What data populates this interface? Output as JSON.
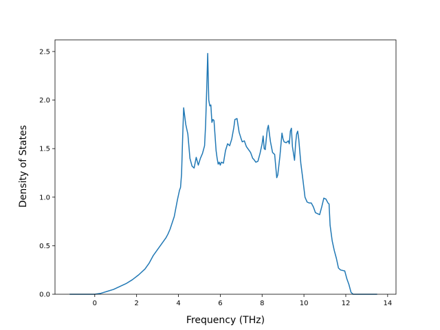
{
  "chart_data": {
    "type": "line",
    "title": "",
    "xlabel": "Frequency (THz)",
    "ylabel": "Density of States",
    "xlim": [
      -1.9,
      14.4
    ],
    "ylim": [
      0,
      2.62
    ],
    "xticks": [
      0,
      2,
      4,
      6,
      8,
      10,
      12,
      14
    ],
    "xtick_labels": [
      "0",
      "2",
      "4",
      "6",
      "8",
      "10",
      "12",
      "14"
    ],
    "yticks": [
      0.0,
      0.5,
      1.0,
      1.5,
      2.0,
      2.5
    ],
    "ytick_labels": [
      "0.0",
      "0.5",
      "1.0",
      "1.5",
      "2.0",
      "2.5"
    ],
    "grid": false,
    "legend": "none",
    "series_color": "#1f77b4",
    "series": [
      {
        "x": [
          -1.2,
          -0.6,
          0.0,
          0.3,
          0.6,
          0.9,
          1.2,
          1.5,
          1.8,
          2.1,
          2.4,
          2.6,
          2.8,
          3.0,
          3.2,
          3.4,
          3.5,
          3.6,
          3.8,
          3.95,
          4.05,
          4.1,
          4.15,
          4.2,
          4.25,
          4.35,
          4.45,
          4.55,
          4.65,
          4.75,
          4.85,
          4.95,
          5.05,
          5.15,
          5.25,
          5.3,
          5.35,
          5.4,
          5.45,
          5.5,
          5.55,
          5.6,
          5.65,
          5.7,
          5.8,
          5.85,
          5.9,
          5.95,
          6.0,
          6.05,
          6.15,
          6.25,
          6.35,
          6.45,
          6.55,
          6.65,
          6.7,
          6.8,
          6.9,
          7.0,
          7.05,
          7.15,
          7.25,
          7.35,
          7.45,
          7.55,
          7.6,
          7.7,
          7.8,
          7.9,
          8.0,
          8.05,
          8.1,
          8.15,
          8.2,
          8.25,
          8.3,
          8.35,
          8.4,
          8.5,
          8.6,
          8.7,
          8.75,
          8.85,
          8.95,
          9.0,
          9.05,
          9.15,
          9.25,
          9.3,
          9.35,
          9.4,
          9.45,
          9.5,
          9.55,
          9.6,
          9.65,
          9.7,
          9.75,
          9.85,
          9.95,
          10.05,
          10.15,
          10.25,
          10.35,
          10.45,
          10.55,
          10.65,
          10.75,
          10.85,
          10.95,
          11.05,
          11.1,
          11.15,
          11.2,
          11.25,
          11.35,
          11.45,
          11.55,
          11.65,
          11.75,
          11.95,
          12.05,
          12.15,
          12.25,
          12.35,
          12.5,
          13.0,
          13.5
        ],
        "y": [
          0.0,
          0.0,
          0.0,
          0.01,
          0.03,
          0.05,
          0.08,
          0.11,
          0.15,
          0.2,
          0.26,
          0.32,
          0.4,
          0.46,
          0.52,
          0.58,
          0.62,
          0.67,
          0.8,
          0.97,
          1.07,
          1.1,
          1.24,
          1.6,
          1.92,
          1.75,
          1.65,
          1.4,
          1.32,
          1.3,
          1.41,
          1.33,
          1.4,
          1.45,
          1.53,
          1.75,
          2.1,
          2.48,
          2.0,
          1.94,
          1.95,
          1.77,
          1.8,
          1.79,
          1.48,
          1.4,
          1.34,
          1.36,
          1.33,
          1.36,
          1.35,
          1.48,
          1.55,
          1.53,
          1.6,
          1.72,
          1.8,
          1.81,
          1.67,
          1.6,
          1.57,
          1.58,
          1.52,
          1.49,
          1.46,
          1.4,
          1.39,
          1.36,
          1.37,
          1.45,
          1.55,
          1.63,
          1.5,
          1.49,
          1.6,
          1.7,
          1.74,
          1.65,
          1.57,
          1.46,
          1.44,
          1.2,
          1.23,
          1.42,
          1.66,
          1.6,
          1.57,
          1.56,
          1.58,
          1.55,
          1.68,
          1.71,
          1.52,
          1.45,
          1.38,
          1.55,
          1.65,
          1.68,
          1.6,
          1.35,
          1.18,
          1.0,
          0.95,
          0.94,
          0.94,
          0.9,
          0.84,
          0.83,
          0.82,
          0.9,
          0.99,
          0.98,
          0.96,
          0.94,
          0.93,
          0.71,
          0.55,
          0.45,
          0.37,
          0.27,
          0.25,
          0.24,
          0.16,
          0.1,
          0.02,
          0.0,
          0.0,
          0.0,
          0.0
        ]
      }
    ]
  }
}
